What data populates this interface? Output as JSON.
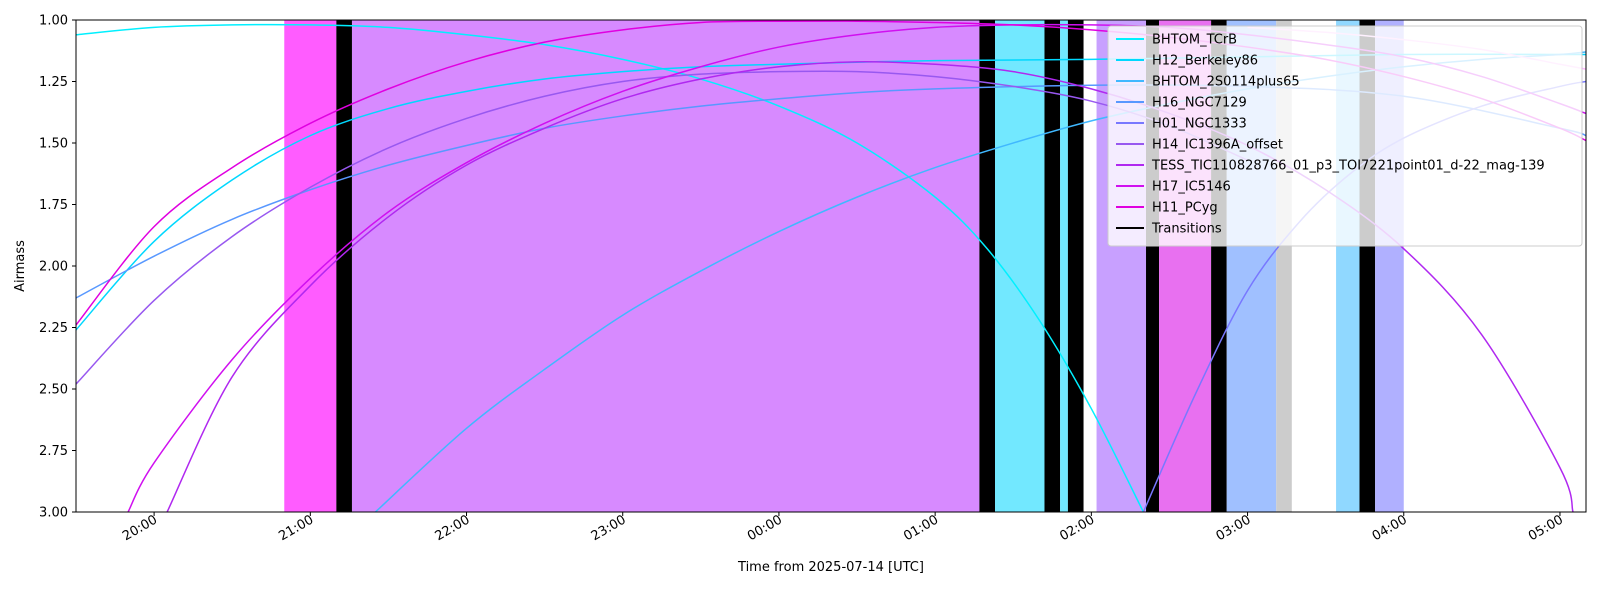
{
  "chart_data": {
    "type": "line",
    "xlabel": "Time from 2025-07-14 [UTC]",
    "ylabel": "Airmass",
    "x_start": "19:30",
    "x_end": "05:10",
    "ylim": [
      1.0,
      3.0
    ],
    "y_inverted": true,
    "y_ticks": [
      "1.00",
      "1.25",
      "1.50",
      "1.75",
      "2.00",
      "2.25",
      "2.50",
      "2.75",
      "3.00"
    ],
    "x_ticks": [
      "20:00",
      "21:00",
      "22:00",
      "23:00",
      "00:00",
      "01:00",
      "02:00",
      "03:00",
      "04:00",
      "05:00"
    ],
    "grid": false,
    "legend_position": "top-right",
    "legend": [
      "BHTOM_TCrB",
      "H12_Berkeley86",
      "BHTOM_2S0114plus65",
      "H16_NGC7129",
      "H01_NGC1333",
      "H14_IC1396A_offset",
      "TESS_TIC110828766_01_p3_TOI7221point01_d-22_mag-139",
      "H17_IC5146",
      "H11_PCyg",
      "Transitions"
    ],
    "transitions_color": "#000000",
    "series": [
      {
        "name": "BHTOM_TCrB",
        "color": "#00f0ff",
        "x": [
          "19:30",
          "20:00",
          "20:30",
          "21:00",
          "21:30",
          "22:00",
          "22:30",
          "23:00",
          "23:30",
          "00:00",
          "00:30",
          "01:00",
          "01:20",
          "01:40",
          "02:00",
          "02:20"
        ],
        "y": [
          1.06,
          1.03,
          1.02,
          1.02,
          1.03,
          1.06,
          1.1,
          1.16,
          1.24,
          1.35,
          1.5,
          1.72,
          1.93,
          2.22,
          2.58,
          3.0
        ]
      },
      {
        "name": "H12_Berkeley86",
        "color": "#00d8ff",
        "x": [
          "19:30",
          "20:00",
          "20:30",
          "21:00",
          "21:30",
          "22:00",
          "22:30",
          "23:00",
          "23:30",
          "00:00",
          "01:00",
          "02:00",
          "03:00",
          "04:00",
          "05:00",
          "05:10"
        ],
        "y": [
          2.26,
          1.9,
          1.65,
          1.47,
          1.36,
          1.29,
          1.24,
          1.21,
          1.19,
          1.18,
          1.165,
          1.16,
          1.15,
          1.14,
          1.14,
          1.14
        ]
      },
      {
        "name": "BHTOM_2S0114plus65",
        "color": "#40b8ff",
        "x": [
          "21:25",
          "22:00",
          "22:30",
          "23:00",
          "23:30",
          "00:00",
          "00:30",
          "01:00",
          "01:30",
          "02:00",
          "02:30",
          "03:00",
          "03:30",
          "04:00",
          "04:30",
          "05:00",
          "05:10"
        ],
        "y": [
          3.0,
          2.66,
          2.42,
          2.2,
          2.02,
          1.86,
          1.72,
          1.6,
          1.5,
          1.41,
          1.34,
          1.28,
          1.23,
          1.19,
          1.16,
          1.14,
          1.13
        ]
      },
      {
        "name": "H16_NGC7129",
        "color": "#5898ff",
        "x": [
          "19:30",
          "20:00",
          "20:30",
          "21:00",
          "21:30",
          "22:00",
          "22:30",
          "23:00",
          "23:30",
          "00:00",
          "00:30",
          "01:00",
          "02:00",
          "03:00",
          "04:00",
          "05:00",
          "05:10"
        ],
        "y": [
          2.13,
          1.96,
          1.81,
          1.69,
          1.59,
          1.51,
          1.44,
          1.39,
          1.35,
          1.32,
          1.295,
          1.28,
          1.265,
          1.27,
          1.31,
          1.44,
          1.47
        ]
      },
      {
        "name": "H01_NGC1333",
        "color": "#7878ff",
        "x": [
          "02:20",
          "02:40",
          "03:00",
          "03:20",
          "03:40",
          "04:00",
          "04:30",
          "05:00",
          "05:10"
        ],
        "y": [
          3.0,
          2.52,
          2.1,
          1.82,
          1.62,
          1.48,
          1.35,
          1.27,
          1.25
        ]
      },
      {
        "name": "H14_IC1396A_offset",
        "color": "#9858f0",
        "x": [
          "19:30",
          "20:00",
          "20:30",
          "21:00",
          "21:30",
          "22:00",
          "22:30",
          "23:00",
          "23:30",
          "00:00",
          "00:30",
          "01:00",
          "01:30",
          "02:00",
          "02:30",
          "03:00"
        ],
        "y": [
          2.48,
          2.14,
          1.88,
          1.68,
          1.52,
          1.4,
          1.31,
          1.25,
          1.22,
          1.21,
          1.21,
          1.23,
          1.27,
          1.33,
          1.43,
          1.57
        ]
      },
      {
        "name": "TESS_TIC110828766_01_p3_TOI7221point01_d-22_mag-139",
        "color": "#b028f0",
        "x": [
          "20:05",
          "20:30",
          "21:00",
          "21:30",
          "22:00",
          "22:30",
          "23:00",
          "23:30",
          "00:00",
          "00:30",
          "01:00",
          "01:30",
          "02:00",
          "02:30",
          "03:00",
          "03:30",
          "04:00",
          "04:30",
          "05:00",
          "05:05"
        ],
        "y": [
          3.0,
          2.45,
          2.08,
          1.8,
          1.59,
          1.44,
          1.32,
          1.24,
          1.19,
          1.17,
          1.18,
          1.21,
          1.28,
          1.38,
          1.51,
          1.69,
          1.93,
          2.28,
          2.82,
          3.0
        ]
      },
      {
        "name": "H17_IC5146",
        "color": "#d010f0",
        "x": [
          "19:50",
          "20:00",
          "20:30",
          "21:00",
          "21:30",
          "22:00",
          "22:30",
          "23:00",
          "23:30",
          "00:00",
          "00:30",
          "01:00",
          "01:30",
          "02:00",
          "02:30",
          "03:00",
          "03:30",
          "04:00",
          "04:30",
          "05:00",
          "05:10"
        ],
        "y": [
          3.0,
          2.8,
          2.38,
          2.05,
          1.78,
          1.58,
          1.42,
          1.29,
          1.19,
          1.11,
          1.06,
          1.03,
          1.02,
          1.02,
          1.03,
          1.06,
          1.1,
          1.15,
          1.23,
          1.34,
          1.38
        ]
      },
      {
        "name": "H11_PCyg",
        "color": "#e000e0",
        "x": [
          "19:30",
          "20:00",
          "20:30",
          "21:00",
          "21:30",
          "22:00",
          "22:30",
          "23:00",
          "23:30",
          "00:00",
          "00:30",
          "01:00",
          "01:30",
          "02:00",
          "02:30",
          "03:00",
          "03:30",
          "04:00",
          "04:30",
          "05:00",
          "05:10"
        ],
        "y": [
          2.24,
          1.84,
          1.6,
          1.42,
          1.28,
          1.17,
          1.09,
          1.04,
          1.01,
          1.005,
          1.005,
          1.01,
          1.02,
          1.04,
          1.07,
          1.11,
          1.16,
          1.23,
          1.32,
          1.44,
          1.49
        ]
      },
      {
        "name": "",
        "color": "#ffb8ff",
        "x": [
          "03:00",
          "03:30",
          "04:00",
          "04:30",
          "05:00",
          "05:10"
        ],
        "y": [
          1.03,
          1.05,
          1.08,
          1.12,
          1.18,
          1.2
        ]
      }
    ],
    "spans": [
      {
        "start": "20:50",
        "end": "21:10",
        "color": "#ff5cff"
      },
      {
        "start": "21:10",
        "end": "21:16",
        "color": "#000000"
      },
      {
        "start": "21:16",
        "end": "01:17",
        "color": "#d78aff"
      },
      {
        "start": "01:17",
        "end": "01:23",
        "color": "#000000"
      },
      {
        "start": "01:23",
        "end": "01:42",
        "color": "#72e8ff"
      },
      {
        "start": "01:42",
        "end": "01:48",
        "color": "#000000"
      },
      {
        "start": "01:48",
        "end": "01:51",
        "color": "#72e8ff"
      },
      {
        "start": "01:51",
        "end": "01:57",
        "color": "#000000"
      },
      {
        "start": "02:02",
        "end": "02:21",
        "color": "#c8a0ff"
      },
      {
        "start": "02:21",
        "end": "02:26",
        "color": "#000000"
      },
      {
        "start": "02:26",
        "end": "02:46",
        "color": "#e870f0"
      },
      {
        "start": "02:46",
        "end": "02:52",
        "color": "#000000"
      },
      {
        "start": "02:52",
        "end": "03:11",
        "color": "#a0c0ff"
      },
      {
        "start": "03:11",
        "end": "03:17",
        "color": "#cccccc"
      },
      {
        "start": "03:34",
        "end": "03:43",
        "color": "#90d8ff"
      },
      {
        "start": "03:43",
        "end": "03:49",
        "color": "#000000"
      },
      {
        "start": "03:49",
        "end": "04:00",
        "color": "#b0b0ff"
      }
    ]
  }
}
